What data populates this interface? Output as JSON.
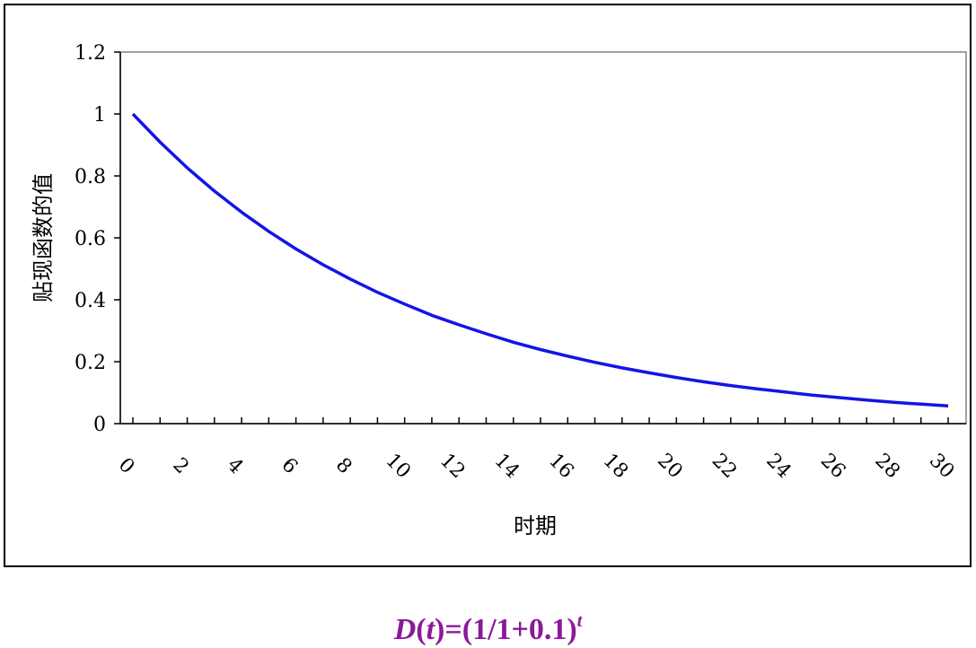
{
  "chart_data": {
    "type": "line",
    "xlabel": "时期",
    "ylabel": "贴现函数的值",
    "x_ticks": [
      "0",
      "2",
      "4",
      "6",
      "8",
      "10",
      "12",
      "14",
      "16",
      "18",
      "20",
      "22",
      "24",
      "26",
      "28",
      "30"
    ],
    "y_ticks": [
      "0",
      "0.2",
      "0.4",
      "0.6",
      "0.8",
      "1",
      "1.2"
    ],
    "ylim": [
      0,
      1.2
    ],
    "xlim": [
      0,
      30
    ],
    "grid": false,
    "line_color": "#1414e6",
    "series": [
      {
        "x": [
          0,
          1,
          2,
          3,
          4,
          5,
          6,
          7,
          8,
          9,
          10,
          11,
          12,
          13,
          14,
          15,
          16,
          17,
          18,
          19,
          20,
          21,
          22,
          23,
          24,
          25,
          26,
          27,
          28,
          29,
          30
        ],
        "values": [
          1.0,
          0.909,
          0.826,
          0.751,
          0.683,
          0.621,
          0.564,
          0.513,
          0.467,
          0.424,
          0.386,
          0.35,
          0.319,
          0.29,
          0.263,
          0.239,
          0.218,
          0.198,
          0.18,
          0.164,
          0.149,
          0.135,
          0.123,
          0.112,
          0.102,
          0.092,
          0.084,
          0.076,
          0.069,
          0.063,
          0.057
        ]
      }
    ]
  },
  "formula": {
    "D": "D",
    "t1": "t",
    "eq": ")=(1/1+0.1)",
    "open": "(",
    "exp": "t"
  }
}
